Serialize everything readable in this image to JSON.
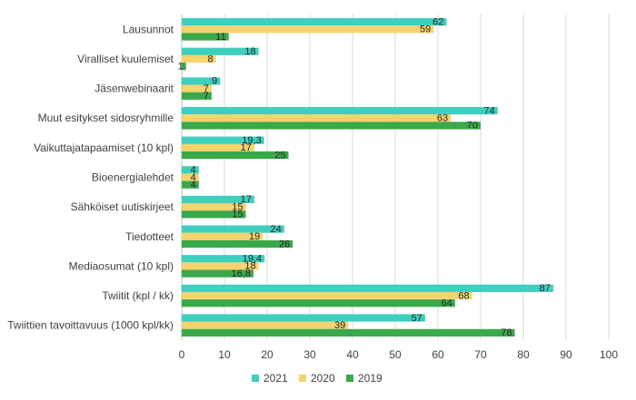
{
  "chart_data": {
    "type": "bar",
    "orientation": "horizontal",
    "categories": [
      "Lausunnot",
      "Viralliset kuulemiset",
      "Jäsenwebinaarit",
      "Muut esitykset sidosryhmille",
      "Vaikuttajatapaamiset (10 kpl)",
      "Bioenergialehdet",
      "Sähköiset uutiskirjeet",
      "Tiedotteet",
      "Mediaosumat (10 kpl)",
      "Twiitit (kpl / kk)",
      "Twiittien tavoittavuus (1000 kpl/kk)"
    ],
    "series": [
      {
        "name": "2021",
        "color": "#3ecfbe",
        "values": [
          62,
          18,
          9,
          74,
          19.3,
          4,
          17,
          24,
          19.4,
          87,
          57
        ],
        "labels": [
          "62",
          "18",
          "9",
          "74",
          "19,3",
          "4",
          "17",
          "24",
          "19,4",
          "87",
          "57"
        ]
      },
      {
        "name": "2020",
        "color": "#f5d36e",
        "values": [
          59,
          8,
          7,
          63,
          17,
          4,
          15,
          19,
          18,
          68,
          39
        ],
        "labels": [
          "59",
          "8",
          "7",
          "63",
          "17",
          "4",
          "15",
          "19",
          "18",
          "68",
          "39"
        ]
      },
      {
        "name": "2019",
        "color": "#3aa94a",
        "values": [
          11,
          1,
          7,
          70,
          25,
          4,
          15,
          26,
          16.8,
          64,
          78
        ],
        "labels": [
          "11",
          "1",
          "7",
          "70",
          "25",
          "4",
          "15",
          "26",
          "16,8",
          "64",
          "78"
        ]
      }
    ],
    "xlim": [
      0,
      100
    ],
    "xticks": [
      0,
      10,
      20,
      30,
      40,
      50,
      60,
      70,
      80,
      90,
      100
    ],
    "grid": true,
    "legend_position": "bottom"
  }
}
